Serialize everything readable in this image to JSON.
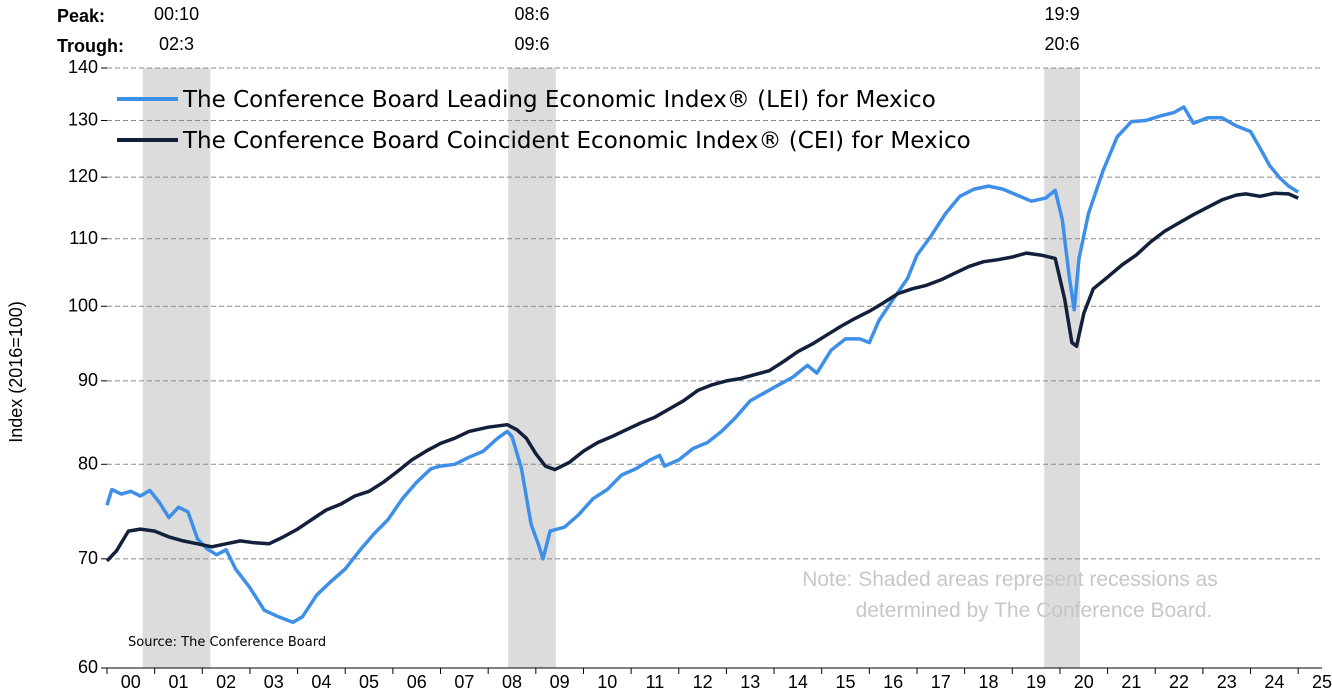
{
  "chart_data": {
    "type": "line",
    "ylabel": "Index (2016=100)",
    "y_scale": "log",
    "ylim": [
      60,
      140
    ],
    "y_ticks": [
      "60",
      "70",
      "80",
      "90",
      "100",
      "110",
      "120",
      "130",
      "140"
    ],
    "x_ticks": [
      "00",
      "01",
      "02",
      "03",
      "04",
      "05",
      "06",
      "07",
      "08",
      "09",
      "10",
      "11",
      "12",
      "13",
      "14",
      "15",
      "16",
      "17",
      "18",
      "19",
      "20",
      "21",
      "22",
      "23",
      "24",
      "25"
    ],
    "xlim": [
      2000.0,
      2025.5
    ],
    "grid": "horizontal dashed",
    "legend_position": "top-left",
    "recessions": {
      "peak_label": "Peak:",
      "trough_label": "Trough:",
      "items": [
        {
          "peak": "00:10",
          "trough": "02:3",
          "start": 2000.75,
          "end": 2002.17
        },
        {
          "peak": "08:6",
          "trough": "09:6",
          "start": 2008.42,
          "end": 2009.42
        },
        {
          "peak": "19:9",
          "trough": "20:6",
          "start": 2019.67,
          "end": 2020.42
        }
      ]
    },
    "series": [
      {
        "name": "The Conference Board Leading Economic Index® (LEI) for Mexico",
        "color": "#3d8fe8",
        "points": [
          [
            2000.0,
            75.5
          ],
          [
            2000.1,
            77.2
          ],
          [
            2000.3,
            76.7
          ],
          [
            2000.5,
            77.0
          ],
          [
            2000.7,
            76.5
          ],
          [
            2000.9,
            77.1
          ],
          [
            2001.1,
            75.8
          ],
          [
            2001.3,
            74.2
          ],
          [
            2001.5,
            75.3
          ],
          [
            2001.7,
            74.8
          ],
          [
            2001.9,
            72.0
          ],
          [
            2002.1,
            71.0
          ],
          [
            2002.3,
            70.4
          ],
          [
            2002.5,
            70.9
          ],
          [
            2002.7,
            69.0
          ],
          [
            2003.0,
            67.2
          ],
          [
            2003.3,
            65.1
          ],
          [
            2003.6,
            64.5
          ],
          [
            2003.9,
            64.0
          ],
          [
            2004.1,
            64.5
          ],
          [
            2004.4,
            66.5
          ],
          [
            2004.7,
            67.8
          ],
          [
            2005.0,
            69.0
          ],
          [
            2005.3,
            70.8
          ],
          [
            2005.6,
            72.5
          ],
          [
            2005.9,
            74.0
          ],
          [
            2006.2,
            76.2
          ],
          [
            2006.5,
            78.0
          ],
          [
            2006.8,
            79.5
          ],
          [
            2007.0,
            79.8
          ],
          [
            2007.3,
            80.0
          ],
          [
            2007.6,
            80.8
          ],
          [
            2007.9,
            81.5
          ],
          [
            2008.2,
            83.0
          ],
          [
            2008.4,
            83.8
          ],
          [
            2008.5,
            83.2
          ],
          [
            2008.7,
            79.5
          ],
          [
            2008.9,
            73.5
          ],
          [
            2009.05,
            71.5
          ],
          [
            2009.15,
            70.0
          ],
          [
            2009.3,
            72.8
          ],
          [
            2009.6,
            73.2
          ],
          [
            2009.9,
            74.5
          ],
          [
            2010.2,
            76.2
          ],
          [
            2010.5,
            77.2
          ],
          [
            2010.8,
            78.8
          ],
          [
            2011.1,
            79.5
          ],
          [
            2011.4,
            80.5
          ],
          [
            2011.6,
            81.0
          ],
          [
            2011.7,
            79.8
          ],
          [
            2012.0,
            80.5
          ],
          [
            2012.3,
            81.8
          ],
          [
            2012.6,
            82.5
          ],
          [
            2012.9,
            83.8
          ],
          [
            2013.2,
            85.5
          ],
          [
            2013.5,
            87.5
          ],
          [
            2013.8,
            88.5
          ],
          [
            2014.1,
            89.5
          ],
          [
            2014.4,
            90.5
          ],
          [
            2014.7,
            92.0
          ],
          [
            2014.9,
            91.0
          ],
          [
            2015.2,
            94.0
          ],
          [
            2015.5,
            95.5
          ],
          [
            2015.8,
            95.5
          ],
          [
            2016.0,
            95.0
          ],
          [
            2016.2,
            98.0
          ],
          [
            2016.5,
            101.0
          ],
          [
            2016.8,
            104.0
          ],
          [
            2017.0,
            107.5
          ],
          [
            2017.3,
            110.5
          ],
          [
            2017.6,
            114.0
          ],
          [
            2017.9,
            116.8
          ],
          [
            2018.2,
            118.0
          ],
          [
            2018.5,
            118.5
          ],
          [
            2018.8,
            118.0
          ],
          [
            2019.1,
            117.0
          ],
          [
            2019.4,
            116.0
          ],
          [
            2019.7,
            116.5
          ],
          [
            2019.9,
            117.8
          ],
          [
            2020.05,
            113.0
          ],
          [
            2020.2,
            104.0
          ],
          [
            2020.3,
            99.5
          ],
          [
            2020.4,
            107.0
          ],
          [
            2020.6,
            114.0
          ],
          [
            2020.9,
            121.0
          ],
          [
            2021.2,
            127.0
          ],
          [
            2021.5,
            129.8
          ],
          [
            2021.8,
            130.0
          ],
          [
            2022.1,
            130.8
          ],
          [
            2022.4,
            131.5
          ],
          [
            2022.6,
            132.5
          ],
          [
            2022.8,
            129.5
          ],
          [
            2023.1,
            130.5
          ],
          [
            2023.4,
            130.5
          ],
          [
            2023.7,
            129.0
          ],
          [
            2024.0,
            128.0
          ],
          [
            2024.2,
            125.0
          ],
          [
            2024.4,
            122.0
          ],
          [
            2024.6,
            120.0
          ],
          [
            2024.8,
            118.5
          ],
          [
            2025.0,
            117.5
          ]
        ]
      },
      {
        "name": "The Conference Board Coincident Economic Index® (CEI) for Mexico",
        "color": "#13203b",
        "points": [
          [
            2000.0,
            69.8
          ],
          [
            2000.2,
            70.8
          ],
          [
            2000.45,
            72.8
          ],
          [
            2000.7,
            73.0
          ],
          [
            2001.0,
            72.8
          ],
          [
            2001.3,
            72.2
          ],
          [
            2001.6,
            71.8
          ],
          [
            2001.9,
            71.5
          ],
          [
            2002.2,
            71.2
          ],
          [
            2002.5,
            71.5
          ],
          [
            2002.8,
            71.8
          ],
          [
            2003.1,
            71.6
          ],
          [
            2003.4,
            71.5
          ],
          [
            2003.7,
            72.2
          ],
          [
            2004.0,
            73.0
          ],
          [
            2004.3,
            74.0
          ],
          [
            2004.6,
            75.0
          ],
          [
            2004.9,
            75.6
          ],
          [
            2005.2,
            76.5
          ],
          [
            2005.5,
            77.0
          ],
          [
            2005.8,
            78.0
          ],
          [
            2006.1,
            79.2
          ],
          [
            2006.4,
            80.5
          ],
          [
            2006.7,
            81.5
          ],
          [
            2007.0,
            82.4
          ],
          [
            2007.3,
            83.0
          ],
          [
            2007.6,
            83.8
          ],
          [
            2008.0,
            84.3
          ],
          [
            2008.4,
            84.6
          ],
          [
            2008.6,
            84.0
          ],
          [
            2008.8,
            83.0
          ],
          [
            2009.0,
            81.2
          ],
          [
            2009.2,
            79.8
          ],
          [
            2009.4,
            79.4
          ],
          [
            2009.7,
            80.2
          ],
          [
            2010.0,
            81.5
          ],
          [
            2010.3,
            82.5
          ],
          [
            2010.6,
            83.2
          ],
          [
            2010.9,
            84.0
          ],
          [
            2011.2,
            84.8
          ],
          [
            2011.5,
            85.5
          ],
          [
            2011.8,
            86.5
          ],
          [
            2012.1,
            87.5
          ],
          [
            2012.4,
            88.8
          ],
          [
            2012.7,
            89.5
          ],
          [
            2013.0,
            90.0
          ],
          [
            2013.3,
            90.3
          ],
          [
            2013.6,
            90.8
          ],
          [
            2013.9,
            91.3
          ],
          [
            2014.2,
            92.5
          ],
          [
            2014.5,
            93.8
          ],
          [
            2014.8,
            94.8
          ],
          [
            2015.1,
            96.0
          ],
          [
            2015.4,
            97.2
          ],
          [
            2015.7,
            98.3
          ],
          [
            2016.0,
            99.3
          ],
          [
            2016.3,
            100.5
          ],
          [
            2016.6,
            101.8
          ],
          [
            2016.9,
            102.5
          ],
          [
            2017.2,
            103.0
          ],
          [
            2017.5,
            103.8
          ],
          [
            2017.8,
            104.8
          ],
          [
            2018.1,
            105.8
          ],
          [
            2018.4,
            106.5
          ],
          [
            2018.7,
            106.8
          ],
          [
            2019.0,
            107.2
          ],
          [
            2019.3,
            107.8
          ],
          [
            2019.6,
            107.5
          ],
          [
            2019.9,
            107.0
          ],
          [
            2020.1,
            101.0
          ],
          [
            2020.25,
            95.0
          ],
          [
            2020.35,
            94.5
          ],
          [
            2020.5,
            99.0
          ],
          [
            2020.7,
            102.5
          ],
          [
            2021.0,
            104.2
          ],
          [
            2021.3,
            106.0
          ],
          [
            2021.6,
            107.5
          ],
          [
            2021.9,
            109.5
          ],
          [
            2022.2,
            111.2
          ],
          [
            2022.5,
            112.5
          ],
          [
            2022.8,
            113.8
          ],
          [
            2023.1,
            115.0
          ],
          [
            2023.4,
            116.2
          ],
          [
            2023.7,
            117.0
          ],
          [
            2023.9,
            117.2
          ],
          [
            2024.2,
            116.8
          ],
          [
            2024.5,
            117.3
          ],
          [
            2024.8,
            117.2
          ],
          [
            2025.0,
            116.5
          ]
        ]
      }
    ]
  },
  "note": {
    "line1": "Note: Shaded areas represent recessions as",
    "line2": "determined by The Conference Board."
  },
  "source": "Source: The Conference Board"
}
